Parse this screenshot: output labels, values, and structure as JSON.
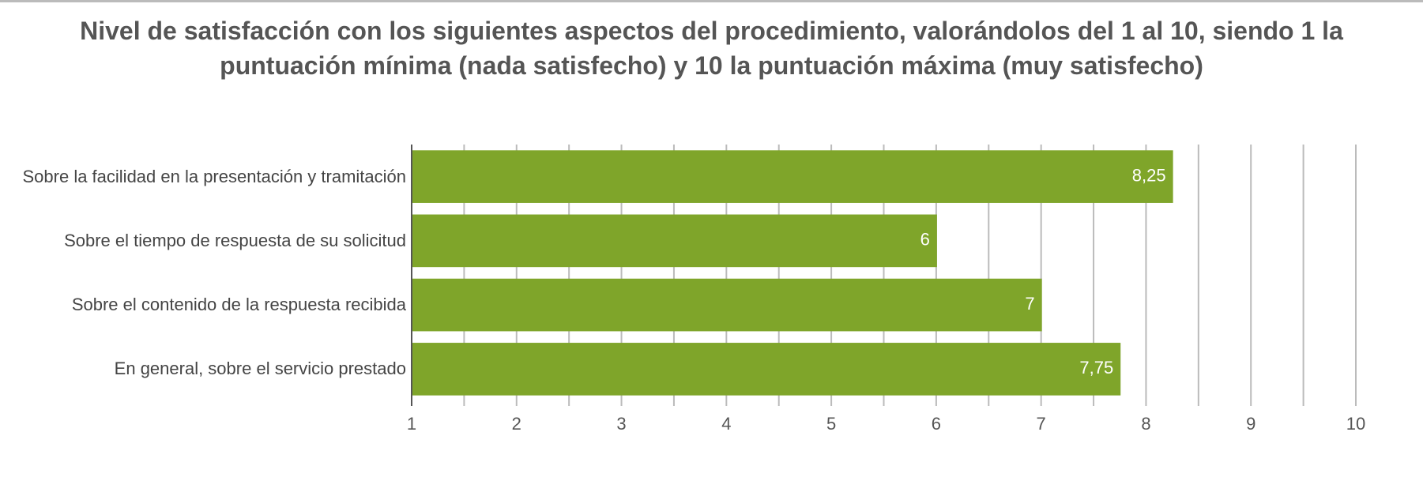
{
  "chart_data": {
    "type": "barh",
    "title": "Nivel de satisfacción con los siguientes aspectos del procedimiento, valorándolos del 1 al 10, siendo 1 la puntuación mínima (nada satisfecho) y 10 la puntuación máxima (muy satisfecho)",
    "categories": [
      "Sobre la facilidad en la presentación y tramitación",
      "Sobre el tiempo de respuesta de su solicitud",
      "Sobre el contenido de la respuesta recibida",
      "En general, sobre el servicio prestado"
    ],
    "values": [
      8.25,
      6,
      7,
      7.75
    ],
    "value_labels": [
      "8,25",
      "6",
      "7",
      "7,75"
    ],
    "color": "#7fa52a",
    "xlim": [
      1,
      10
    ],
    "xticks": [
      1,
      2,
      3,
      4,
      5,
      6,
      7,
      8,
      9,
      10
    ],
    "xminor": [
      1.5,
      2.5,
      3.5,
      4.5,
      5.5,
      6.5,
      7.5,
      8.5,
      9.5
    ],
    "grid": true
  }
}
